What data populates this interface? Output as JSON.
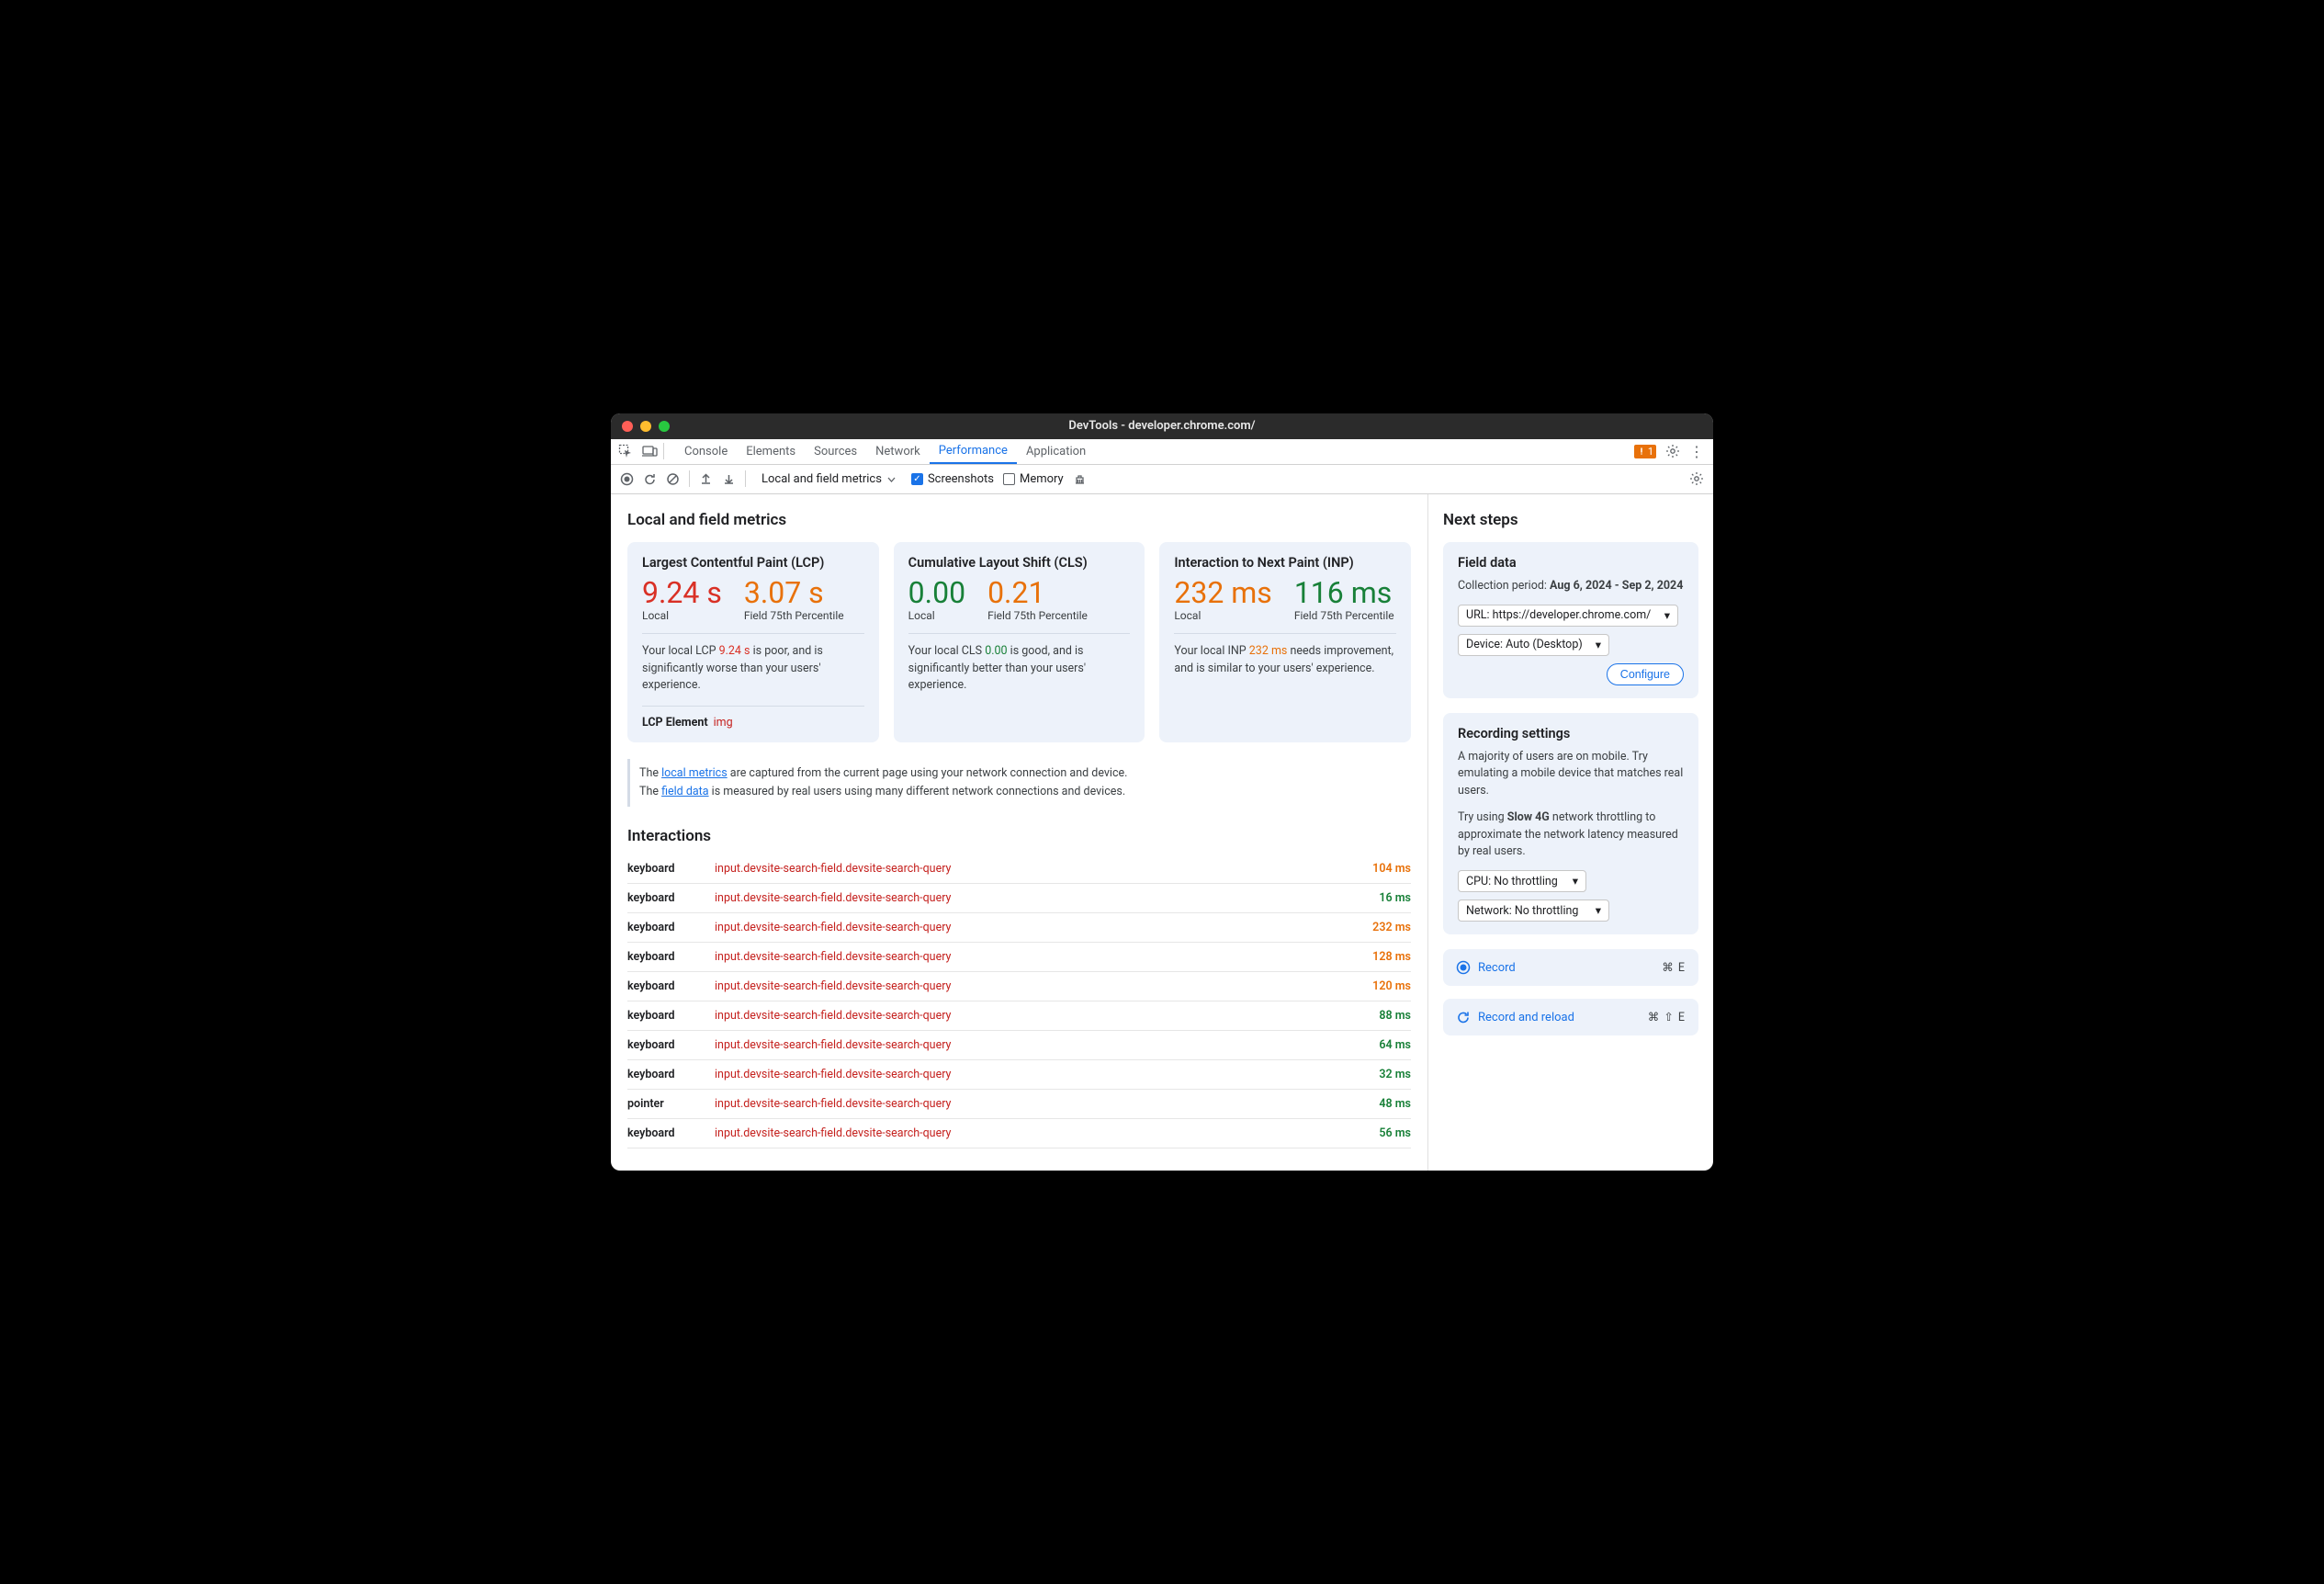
{
  "window": {
    "title": "DevTools - developer.chrome.com/"
  },
  "tabs": {
    "items": [
      "Console",
      "Elements",
      "Sources",
      "Network",
      "Performance",
      "Application"
    ],
    "active_index": 4,
    "warning_count": "1"
  },
  "toolbar": {
    "dropdown_label": "Local and field metrics",
    "screenshots_label": "Screenshots",
    "screenshots_checked": true,
    "memory_label": "Memory",
    "memory_checked": false
  },
  "main_heading": "Local and field metrics",
  "cards": [
    {
      "title": "Largest Contentful Paint (LCP)",
      "local_value": "9.24 s",
      "local_color": "#d93025",
      "field_value": "3.07 s",
      "field_color": "#e8710a",
      "local_label": "Local",
      "field_label": "Field 75th Percentile",
      "desc_pre": "Your local LCP ",
      "desc_val": "9.24 s",
      "desc_val_color": "#d93025",
      "desc_post": " is poor, and is significantly worse than your users' experience.",
      "lcp_label": "LCP Element",
      "lcp_tag": "img"
    },
    {
      "title": "Cumulative Layout Shift (CLS)",
      "local_value": "0.00",
      "local_color": "#188038",
      "field_value": "0.21",
      "field_color": "#e8710a",
      "local_label": "Local",
      "field_label": "Field 75th Percentile",
      "desc_pre": "Your local CLS ",
      "desc_val": "0.00",
      "desc_val_color": "#188038",
      "desc_post": " is good, and is significantly better than your users' experience."
    },
    {
      "title": "Interaction to Next Paint (INP)",
      "local_value": "232 ms",
      "local_color": "#e8710a",
      "field_value": "116 ms",
      "field_color": "#188038",
      "local_label": "Local",
      "field_label": "Field 75th Percentile",
      "desc_pre": "Your local INP ",
      "desc_val": "232 ms",
      "desc_val_color": "#e8710a",
      "desc_post": " needs improvement, and is similar to your users' experience."
    }
  ],
  "note": {
    "line1_pre": "The ",
    "line1_link": "local metrics",
    "line1_post": " are captured from the current page using your network connection and device.",
    "line2_pre": "The ",
    "line2_link": "field data",
    "line2_post": " is measured by real users using many different network connections and devices."
  },
  "interactions_heading": "Interactions",
  "interactions": [
    {
      "kind": "keyboard",
      "selector": "input.devsite-search-field.devsite-search-query",
      "duration": "104 ms",
      "color": "#e8710a"
    },
    {
      "kind": "keyboard",
      "selector": "input.devsite-search-field.devsite-search-query",
      "duration": "16 ms",
      "color": "#188038"
    },
    {
      "kind": "keyboard",
      "selector": "input.devsite-search-field.devsite-search-query",
      "duration": "232 ms",
      "color": "#e8710a"
    },
    {
      "kind": "keyboard",
      "selector": "input.devsite-search-field.devsite-search-query",
      "duration": "128 ms",
      "color": "#e8710a"
    },
    {
      "kind": "keyboard",
      "selector": "input.devsite-search-field.devsite-search-query",
      "duration": "120 ms",
      "color": "#e8710a"
    },
    {
      "kind": "keyboard",
      "selector": "input.devsite-search-field.devsite-search-query",
      "duration": "88 ms",
      "color": "#188038"
    },
    {
      "kind": "keyboard",
      "selector": "input.devsite-search-field.devsite-search-query",
      "duration": "64 ms",
      "color": "#188038"
    },
    {
      "kind": "keyboard",
      "selector": "input.devsite-search-field.devsite-search-query",
      "duration": "32 ms",
      "color": "#188038"
    },
    {
      "kind": "pointer",
      "selector": "input.devsite-search-field.devsite-search-query",
      "duration": "48 ms",
      "color": "#188038"
    },
    {
      "kind": "keyboard",
      "selector": "input.devsite-search-field.devsite-search-query",
      "duration": "56 ms",
      "color": "#188038"
    }
  ],
  "side_heading": "Next steps",
  "field_data": {
    "title": "Field data",
    "period_label": "Collection period:",
    "period_value": "Aug 6, 2024 - Sep 2, 2024",
    "url_label": "URL: https://developer.chrome.com/",
    "device_label": "Device: Auto (Desktop)",
    "configure_label": "Configure"
  },
  "rec_settings": {
    "title": "Recording settings",
    "p1_pre": "A majority of users are on mobile. Try emulating a mobile device that matches real users.",
    "p2_pre": "Try using ",
    "p2_bold": "Slow 4G",
    "p2_post": " network throttling to approximate the network latency measured by real users.",
    "cpu_label": "CPU: No throttling",
    "net_label": "Network: No throttling"
  },
  "record": {
    "label": "Record",
    "shortcut": "⌘ E"
  },
  "record_reload": {
    "label": "Record and reload",
    "shortcut": "⌘ ⇧ E"
  }
}
